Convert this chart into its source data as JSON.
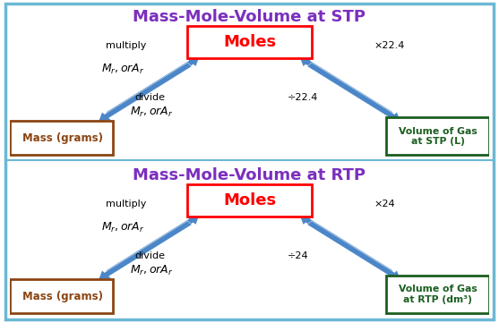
{
  "title_stp": "Mass-Mole-Volume at STP",
  "title_rtp": "Mass-Mole-Volume at RTP",
  "title_color": "#7B2FBE",
  "title_fontsize": 13,
  "bg_color": "#FFFFFF",
  "outer_border_color": "#6BB8D4",
  "mass_label": "Mass (grams)",
  "mass_box_color": "#8B4513",
  "moles_label": "Moles",
  "moles_box_color": "#FF0000",
  "vol_stp_label": "Volume of Gas\nat STP (L)",
  "vol_rtp_label": "Volume of Gas\nat RTP (dm³)",
  "vol_box_color": "#1B5E20",
  "multiply_label": "multiply",
  "divide_label": "divide",
  "mr_label": "$M_r,orA_r$",
  "stp_multiply_label": "×22.4",
  "stp_divide_label": "÷22.4",
  "rtp_multiply_label": "×24",
  "rtp_divide_label": "÷24",
  "arrow_color": "#4A86C8",
  "label_color": "#000000",
  "box_bg": "#FFFFFF"
}
